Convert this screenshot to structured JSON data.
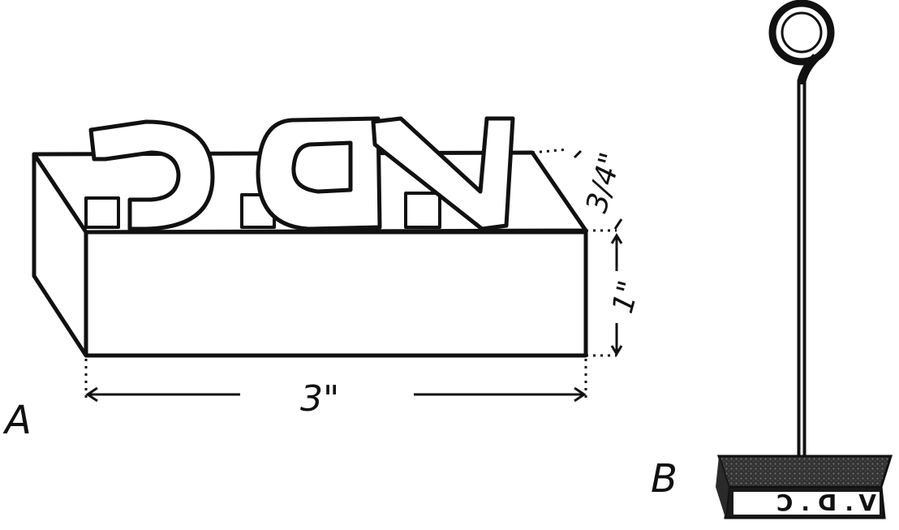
{
  "figure_a": {
    "label": "A",
    "block_letters": "VDC",
    "dim_length": "3\"",
    "dim_height": "1\"",
    "dim_letter_height": "3/4\""
  },
  "figure_b": {
    "label": "B",
    "stamp_text": "V.D.C"
  }
}
